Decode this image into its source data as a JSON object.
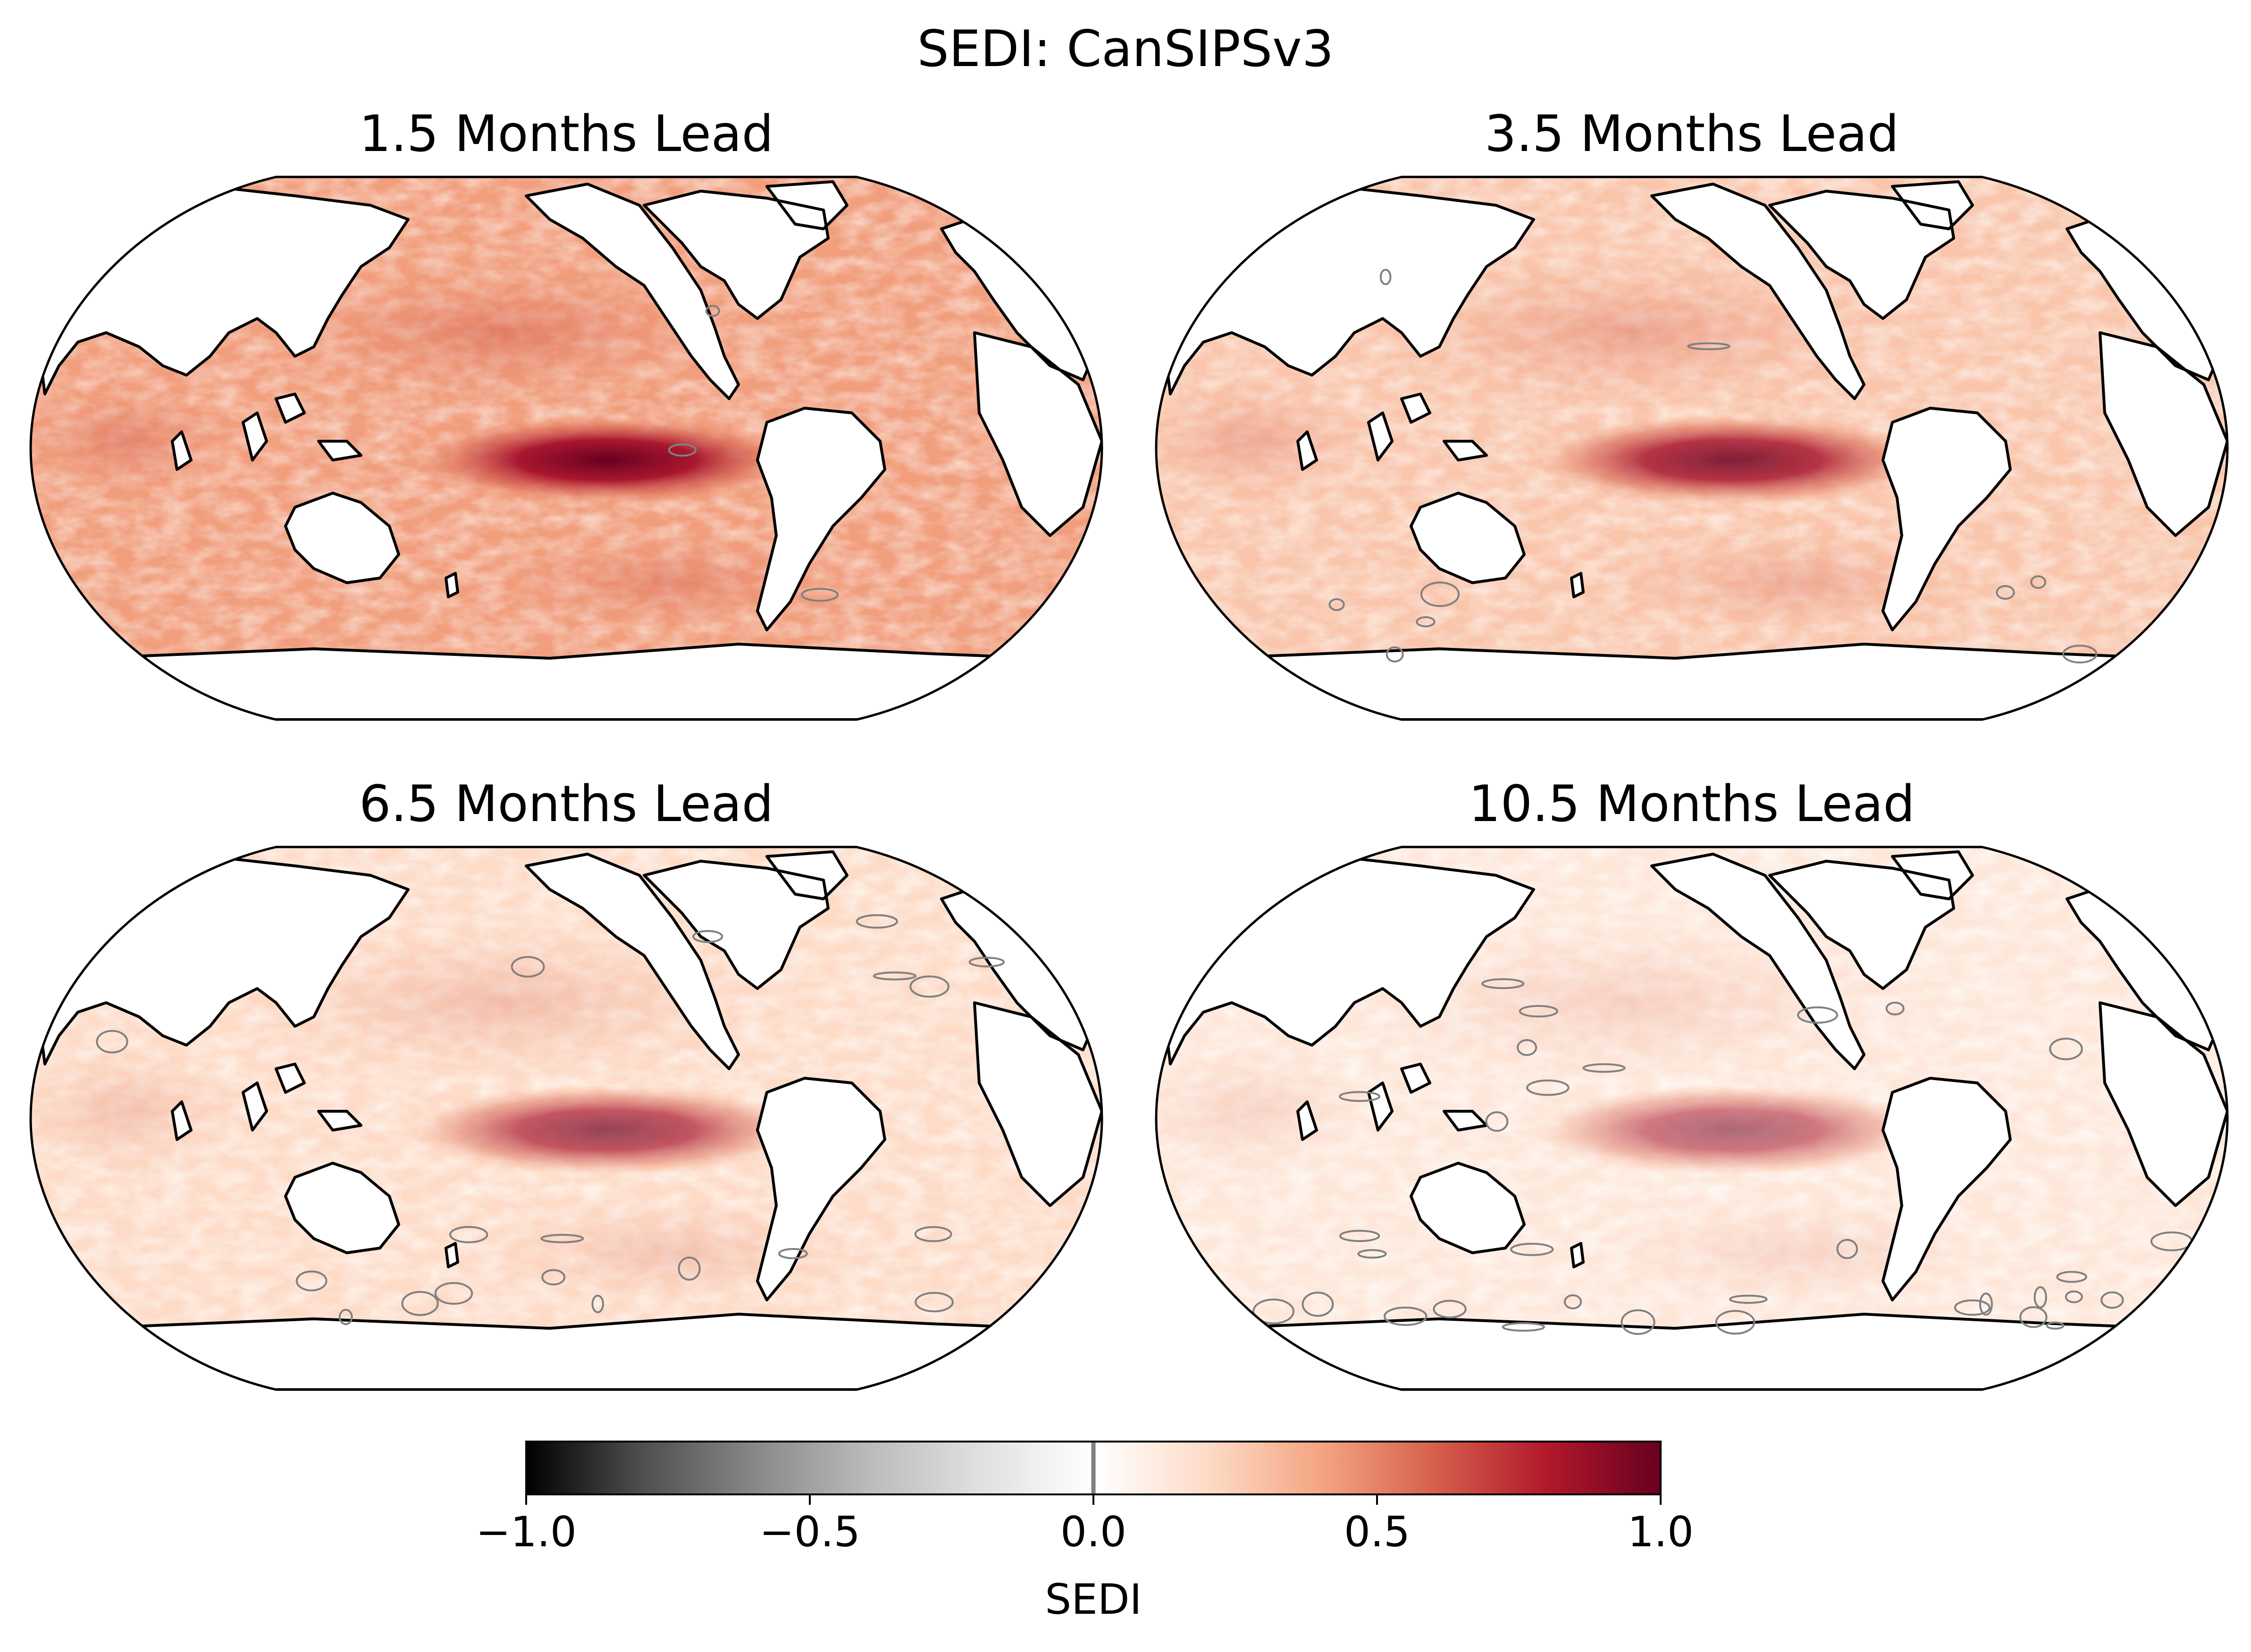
{
  "figure": {
    "title": "SEDI: CanSIPSv3"
  },
  "panels": [
    {
      "id": "lead-1-5",
      "title": "1.5 Months Lead",
      "equatorial_peak": 1.0,
      "background_level": 0.42,
      "negative_fraction": 0.02
    },
    {
      "id": "lead-3-5",
      "title": "3.5 Months Lead",
      "equatorial_peak": 0.85,
      "background_level": 0.28,
      "negative_fraction": 0.06
    },
    {
      "id": "lead-6-5",
      "title": "6.5 Months Lead",
      "equatorial_peak": 0.7,
      "background_level": 0.2,
      "negative_fraction": 0.12
    },
    {
      "id": "lead-10-5",
      "title": "10.5 Months Lead",
      "equatorial_peak": 0.55,
      "background_level": 0.14,
      "negative_fraction": 0.2
    }
  ],
  "colorbar": {
    "label": "SEDI",
    "range": [
      -1.0,
      1.0
    ],
    "ticks": [
      {
        "value": -1.0,
        "label": "−1.0"
      },
      {
        "value": -0.5,
        "label": "−0.5"
      },
      {
        "value": 0.0,
        "label": "0.0"
      },
      {
        "value": 0.5,
        "label": "0.5"
      },
      {
        "value": 1.0,
        "label": "1.0"
      }
    ],
    "colormap_negative": [
      "#000000",
      "#4d4d4d",
      "#878787",
      "#bababa",
      "#e0e0e0",
      "#ffffff"
    ],
    "colormap_positive": [
      "#ffffff",
      "#fddbc7",
      "#f4a582",
      "#d6604d",
      "#b2182b",
      "#67001f"
    ]
  },
  "styles": {
    "coastline_color": "#000000",
    "contour_color": "#808080",
    "land_color": "#ffffff"
  }
}
